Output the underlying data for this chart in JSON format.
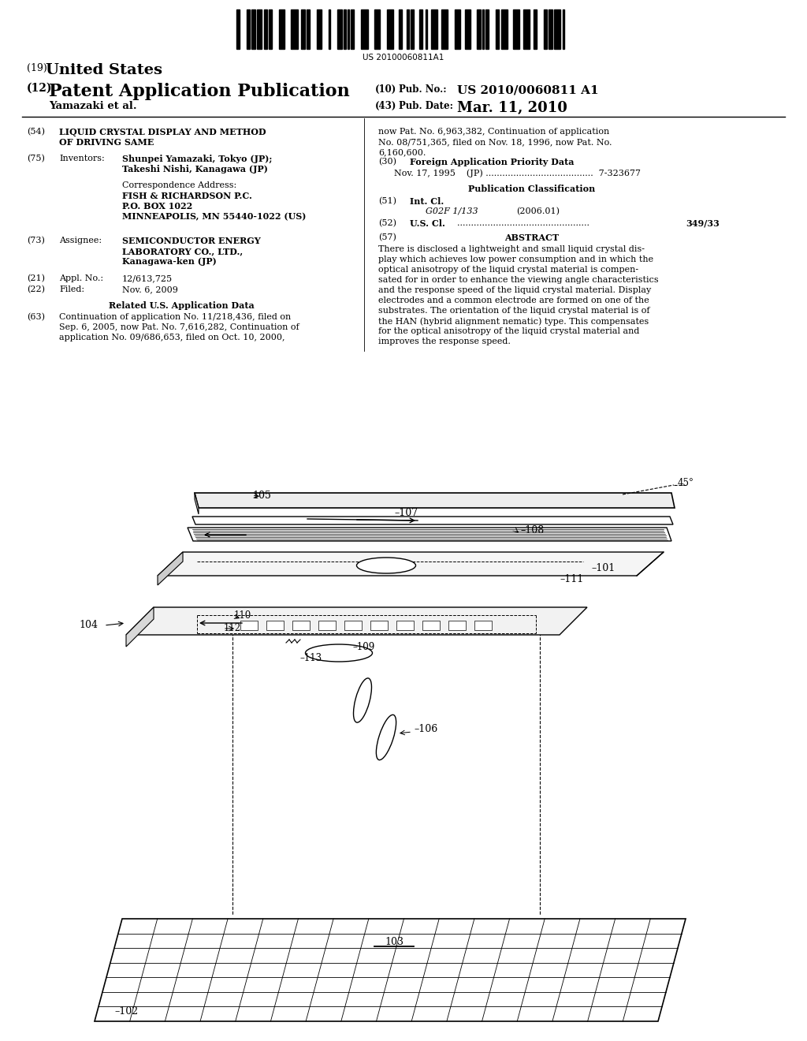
{
  "background_color": "#ffffff",
  "barcode_text": "US 20100060811A1",
  "title_19": "(19) United States",
  "title_12_left": "(12)",
  "title_12_right": "Patent Application Publication",
  "pub_no_label": "(10)  Pub. No.:",
  "pub_no_value": "US 2010/0060811 A1",
  "pub_date_label": "(43)  Pub. Date:",
  "pub_date_value": "Mar. 11, 2010",
  "author_line": "Yamazaki et al.",
  "field_54_label": "(54)",
  "field_54_line1": "LIQUID CRYSTAL DISPLAY AND METHOD",
  "field_54_line2": "OF DRIVING SAME",
  "field_75_label": "(75)",
  "field_75_key": "Inventors:",
  "field_75_line1": "Shunpei Yamazaki, Tokyo (JP);",
  "field_75_line2": "Takeshi Nishi, Kanagawa (JP)",
  "correspondence_label": "Correspondence Address:",
  "corr_line1": "FISH & RICHARDSON P.C.",
  "corr_line2": "P.O. BOX 1022",
  "corr_line3": "MINNEAPOLIS, MN 55440-1022 (US)",
  "field_73_label": "(73)",
  "field_73_key": "Assignee:",
  "field_73_line1": "SEMICONDUCTOR ENERGY",
  "field_73_line2": "LABORATORY CO., LTD.,",
  "field_73_line3": "Kanagawa-ken (JP)",
  "field_21_label": "(21)",
  "field_21_key": "Appl. No.:",
  "field_21_value": "12/613,725",
  "field_22_label": "(22)",
  "field_22_key": "Filed:",
  "field_22_value": "Nov. 6, 2009",
  "related_us_header": "Related U.S. Application Data",
  "field_63_label": "(63)",
  "field_63_line1": "Continuation of application No. 11/218,436, filed on",
  "field_63_line2": "Sep. 6, 2005, now Pat. No. 7,616,282, Continuation of",
  "field_63_line3": "application No. 09/686,653, filed on Oct. 10, 2000,",
  "right_top_line1": "now Pat. No. 6,963,382, Continuation of application",
  "right_top_line2": "No. 08/751,365, filed on Nov. 18, 1996, now Pat. No.",
  "right_top_line3": "6,160,600.",
  "field_30_label": "(30)",
  "field_30_header": "Foreign Application Priority Data",
  "field_30_value": "Nov. 17, 1995    (JP) .......................................  7-323677",
  "pub_class_header": "Publication Classification",
  "field_51_label": "(51)",
  "field_51_key": "Int. Cl.",
  "field_51_value": "G02F 1/133",
  "field_51_year": "(2006.01)",
  "field_52_label": "(52)",
  "field_52_key": "U.S. Cl.",
  "field_52_value": "349/33",
  "field_57_label": "(57)",
  "field_57_header": "ABSTRACT",
  "abstract_line1": "There is disclosed a lightweight and small liquid crystal dis-",
  "abstract_line2": "play which achieves low power consumption and in which the",
  "abstract_line3": "optical anisotropy of the liquid crystal material is compen-",
  "abstract_line4": "sated for in order to enhance the viewing angle characteristics",
  "abstract_line5": "and the response speed of the liquid crystal material. Display",
  "abstract_line6": "electrodes and a common electrode are formed on one of the",
  "abstract_line7": "substrates. The orientation of the liquid crystal material is of",
  "abstract_line8": "the HAN (hybrid alignment nematic) type. This compensates",
  "abstract_line9": "for the optical anisotropy of the liquid crystal material and",
  "abstract_line10": "improves the response speed."
}
